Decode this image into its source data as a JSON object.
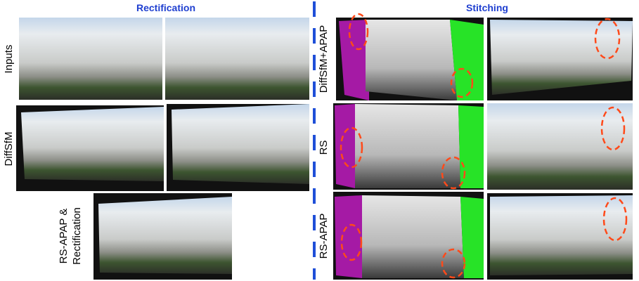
{
  "rectification": {
    "title": "Rectification",
    "rows": [
      {
        "label": [
          "Inputs"
        ]
      },
      {
        "label": [
          "DiffSfM"
        ]
      },
      {
        "label": [
          "RS-APAP &",
          "Rectification"
        ]
      }
    ]
  },
  "stitching": {
    "title": "Stitching",
    "rows": [
      {
        "label": [
          "DiffSfM+APAP"
        ]
      },
      {
        "label": [
          "RS"
        ]
      },
      {
        "label": [
          "RS-APAP"
        ]
      }
    ]
  }
}
